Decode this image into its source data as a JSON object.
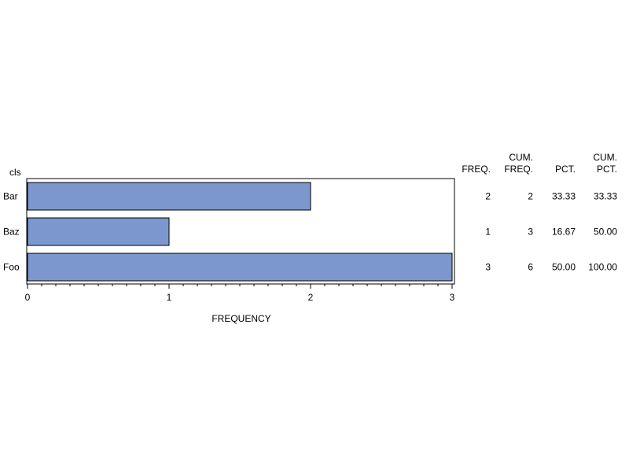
{
  "chart_data": {
    "type": "bar",
    "orientation": "horizontal",
    "category_label": "cls",
    "categories": [
      "Bar",
      "Baz",
      "Foo"
    ],
    "values": [
      2,
      1,
      3
    ],
    "xlabel": "FREQUENCY",
    "xlim": [
      0,
      3
    ],
    "xticks": [
      "0",
      "1",
      "2",
      "3"
    ],
    "bar_color": "#7b97cd",
    "grid": false,
    "table": {
      "headers": [
        {
          "line1": "",
          "line2": "FREQ."
        },
        {
          "line1": "CUM.",
          "line2": "FREQ."
        },
        {
          "line1": "",
          "line2": "PCT."
        },
        {
          "line1": "CUM.",
          "line2": "PCT."
        }
      ],
      "rows": [
        [
          "2",
          "2",
          "33.33",
          "33.33"
        ],
        [
          "1",
          "3",
          "16.67",
          "50.00"
        ],
        [
          "3",
          "6",
          "50.00",
          "100.00"
        ]
      ]
    }
  }
}
